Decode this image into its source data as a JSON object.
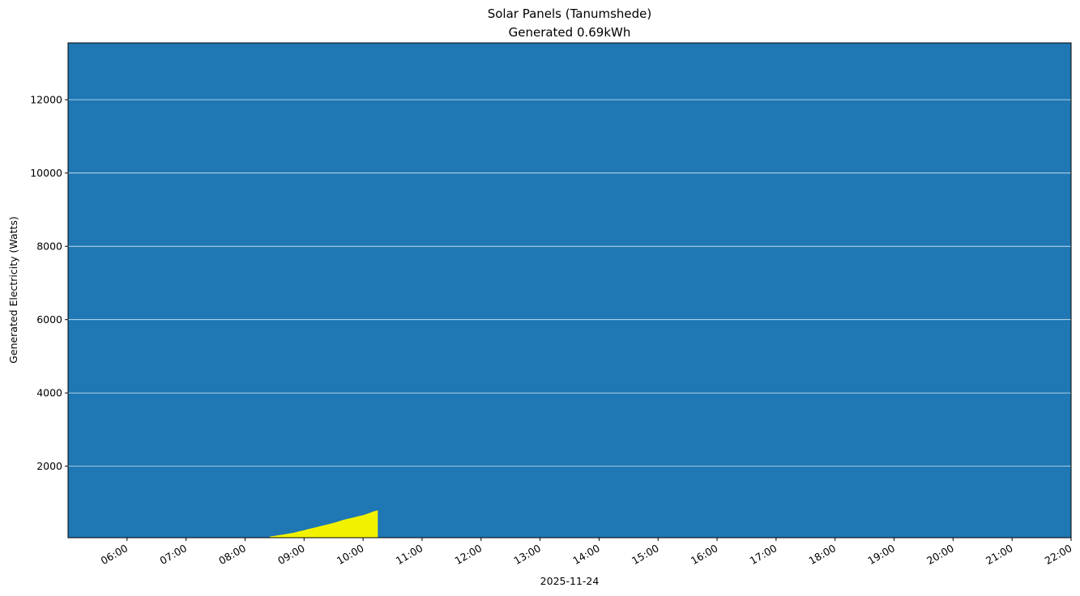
{
  "chart_data": {
    "type": "area",
    "title": "Solar Panels (Tanumshede)",
    "subtitle": "Generated 0.69kWh",
    "xlabel": "2025-11-24",
    "ylabel": "Generated Electricity (Watts)",
    "x_range": [
      "05:00",
      "22:00"
    ],
    "ylim": [
      50,
      13550
    ],
    "x_ticks": [
      "06:00",
      "07:00",
      "08:00",
      "09:00",
      "10:00",
      "11:00",
      "12:00",
      "13:00",
      "14:00",
      "15:00",
      "16:00",
      "17:00",
      "18:00",
      "19:00",
      "20:00",
      "21:00",
      "22:00"
    ],
    "y_ticks": [
      2000,
      4000,
      6000,
      8000,
      10000,
      12000
    ],
    "grid": "horizontal",
    "colors": {
      "background": "#1f77b4",
      "fill": "#f2f200",
      "grid": "#ffffff"
    },
    "series": [
      {
        "x": [
          "08:25",
          "08:30",
          "08:35",
          "08:40",
          "08:45",
          "08:50",
          "08:55",
          "09:00",
          "09:05",
          "09:10",
          "09:15",
          "09:20",
          "09:25",
          "09:30",
          "09:35",
          "09:40",
          "09:45",
          "09:50",
          "09:55",
          "10:00",
          "10:05",
          "10:10",
          "10:15"
        ],
        "values": [
          80,
          100,
          120,
          140,
          165,
          190,
          225,
          255,
          290,
          320,
          355,
          385,
          420,
          455,
          495,
          535,
          570,
          600,
          635,
          665,
          710,
          760,
          800
        ]
      }
    ]
  }
}
